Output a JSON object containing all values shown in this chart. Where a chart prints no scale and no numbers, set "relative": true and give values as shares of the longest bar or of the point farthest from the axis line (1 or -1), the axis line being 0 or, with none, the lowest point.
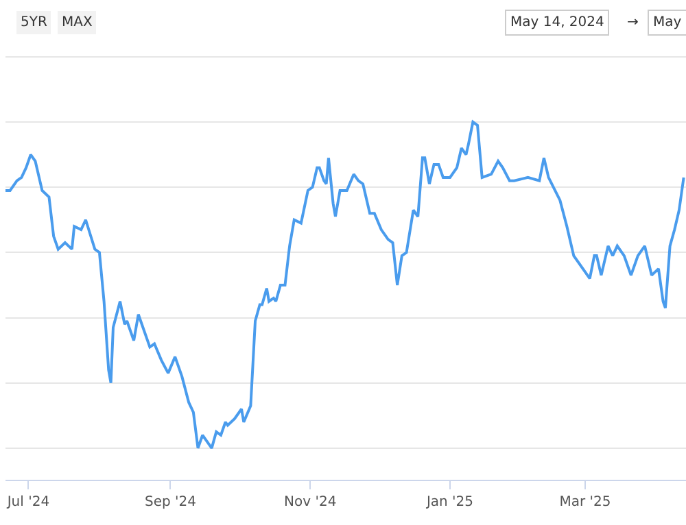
{
  "chart_data": {
    "type": "line",
    "relative": true,
    "grid": "y",
    "marker": "none",
    "line_style": "solid",
    "annotations": [
      "5YR",
      "MAX",
      "May 14, 2024",
      "→",
      "May"
    ],
    "xlim": [
      "2024-06-21",
      "2025-04-14"
    ],
    "xticks": [
      {
        "value": "2024-07-01",
        "label": "Jul '24"
      },
      {
        "value": "2024-09-01",
        "label": "Sep '24"
      },
      {
        "value": "2024-11-01",
        "label": "Nov '24"
      },
      {
        "value": "2025-01-01",
        "label": "Jan '25"
      },
      {
        "value": "2025-03-01",
        "label": "Mar '25"
      }
    ],
    "x": [
      "2024-06-21",
      "2024-06-23",
      "2024-06-26",
      "2024-06-28",
      "2024-06-30",
      "2024-07-02",
      "2024-07-04",
      "2024-07-07",
      "2024-07-10",
      "2024-07-12",
      "2024-07-14",
      "2024-07-17",
      "2024-07-20",
      "2024-07-21",
      "2024-07-24",
      "2024-07-26",
      "2024-07-30",
      "2024-08-01",
      "2024-08-03",
      "2024-08-05",
      "2024-08-06",
      "2024-08-07",
      "2024-08-10",
      "2024-08-12",
      "2024-08-13",
      "2024-08-16",
      "2024-08-18",
      "2024-08-23",
      "2024-08-25",
      "2024-08-28",
      "2024-08-31",
      "2024-09-03",
      "2024-09-06",
      "2024-09-09",
      "2024-09-11",
      "2024-09-13",
      "2024-09-15",
      "2024-09-19",
      "2024-09-21",
      "2024-09-23",
      "2024-09-25",
      "2024-09-26",
      "2024-09-29",
      "2024-10-02",
      "2024-10-03",
      "2024-10-06",
      "2024-10-08",
      "2024-10-10",
      "2024-10-11",
      "2024-10-13",
      "2024-10-14",
      "2024-10-16",
      "2024-10-17",
      "2024-10-19",
      "2024-10-21",
      "2024-10-23",
      "2024-10-25",
      "2024-10-28",
      "2024-10-31",
      "2024-11-02",
      "2024-11-04",
      "2024-11-05",
      "2024-11-07",
      "2024-11-08",
      "2024-11-09",
      "2024-11-11",
      "2024-11-12",
      "2024-11-14",
      "2024-11-17",
      "2024-11-20",
      "2024-11-22",
      "2024-11-24",
      "2024-11-27",
      "2024-11-29",
      "2024-12-02",
      "2024-12-05",
      "2024-12-07",
      "2024-12-09",
      "2024-12-11",
      "2024-12-13",
      "2024-12-16",
      "2024-12-18",
      "2024-12-20",
      "2024-12-21",
      "2024-12-23",
      "2024-12-25",
      "2024-12-27",
      "2024-12-29",
      "2025-01-01",
      "2025-01-04",
      "2025-01-06",
      "2025-01-08",
      "2025-01-09",
      "2025-01-11",
      "2025-01-13",
      "2025-01-15",
      "2025-01-19",
      "2025-01-22",
      "2025-01-24",
      "2025-01-27",
      "2025-01-29",
      "2025-02-04",
      "2025-02-09",
      "2025-02-11",
      "2025-02-13",
      "2025-02-18",
      "2025-02-21",
      "2025-02-24",
      "2025-02-28",
      "2025-03-03",
      "2025-03-05",
      "2025-03-06",
      "2025-03-08",
      "2025-03-11",
      "2025-03-13",
      "2025-03-15",
      "2025-03-18",
      "2025-03-21",
      "2025-03-24",
      "2025-03-27",
      "2025-03-30",
      "2025-04-02",
      "2025-04-04",
      "2025-04-05",
      "2025-04-07",
      "2025-04-09",
      "2025-04-11",
      "2025-04-13"
    ],
    "series": [
      {
        "color": "#4a9ced",
        "values": [
          0.79,
          0.79,
          0.82,
          0.83,
          0.86,
          0.9,
          0.88,
          0.79,
          0.77,
          0.65,
          0.61,
          0.63,
          0.61,
          0.68,
          0.67,
          0.7,
          0.61,
          0.6,
          0.45,
          0.24,
          0.2,
          0.37,
          0.45,
          0.38,
          0.39,
          0.33,
          0.41,
          0.31,
          0.32,
          0.27,
          0.23,
          0.28,
          0.22,
          0.14,
          0.11,
          0,
          0.04,
          0,
          0.05,
          0.04,
          0.08,
          0.07,
          0.09,
          0.12,
          0.08,
          0.13,
          0.39,
          0.44,
          0.44,
          0.49,
          0.45,
          0.46,
          0.45,
          0.5,
          0.5,
          0.62,
          0.7,
          0.69,
          0.79,
          0.8,
          0.86,
          0.86,
          0.82,
          0.81,
          0.89,
          0.75,
          0.71,
          0.79,
          0.79,
          0.84,
          0.82,
          0.81,
          0.72,
          0.72,
          0.67,
          0.64,
          0.63,
          0.5,
          0.59,
          0.6,
          0.73,
          0.71,
          0.89,
          0.89,
          0.81,
          0.87,
          0.87,
          0.83,
          0.83,
          0.86,
          0.92,
          0.9,
          0.93,
          1,
          0.99,
          0.83,
          0.84,
          0.88,
          0.86,
          0.82,
          0.82,
          0.83,
          0.82,
          0.89,
          0.83,
          0.76,
          0.68,
          0.59,
          0.55,
          0.52,
          0.59,
          0.59,
          0.53,
          0.62,
          0.59,
          0.62,
          0.59,
          0.53,
          0.59,
          0.62,
          0.53,
          0.55,
          0.45,
          0.43,
          0.62,
          0.67,
          0.73,
          0.83
        ]
      }
    ]
  }
}
